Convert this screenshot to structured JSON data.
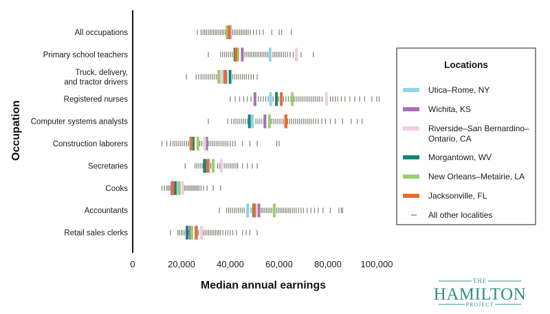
{
  "chart_data": {
    "type": "strip",
    "xlabel": "Median annual earnings",
    "ylabel": "Occupation",
    "xlim": [
      0,
      100000
    ],
    "xticks": [
      0,
      20000,
      40000,
      60000,
      80000,
      100000
    ],
    "xtick_labels": [
      "0",
      "20,000",
      "40,000",
      "60,000",
      "80,000",
      "100,000"
    ],
    "categories": [
      "All occupations",
      "Primary school teachers",
      "Truck, delivery,\nand tractor drivers",
      "Registered nurses",
      "Computer systems analysts",
      "Construction laborers",
      "Secretaries",
      "Cooks",
      "Accountants",
      "Retail sales clerks"
    ],
    "legend_title": "Locations",
    "legend_position": "right",
    "series": [
      {
        "name": "Utica–Rome, NY",
        "color": "#8fd3ec",
        "values": [
          39200,
          56300,
          36700,
          56500,
          49000,
          23700,
          31200,
          18100,
          47100,
          25800
        ]
      },
      {
        "name": "Wichita, KS",
        "color": "#a870b4",
        "values": [
          39900,
          44900,
          38200,
          50100,
          54200,
          30300,
          29900,
          16100,
          51700,
          23600
        ]
      },
      {
        "name": "Riverside–San Bernardino–\nOntario, CA",
        "color": "#f1cde2",
        "values": [
          39600,
          67100,
          36300,
          79400,
          62400,
          29500,
          36300,
          20500,
          50700,
          28200
        ]
      },
      {
        "name": "Morgantown, WV",
        "color": "#10877a",
        "values": [
          38800,
          41900,
          39900,
          58900,
          47800,
          24800,
          29400,
          17400,
          49600,
          22300
        ]
      },
      {
        "name": "New Orleans–Metairie, LA",
        "color": "#9ccf6b",
        "values": [
          38700,
          43100,
          35300,
          65400,
          56000,
          26700,
          33000,
          19100,
          58000,
          24200
        ]
      },
      {
        "name": "Jacksonville, FL",
        "color": "#ec6b2a",
        "values": [
          39500,
          42300,
          37800,
          60900,
          62800,
          24100,
          30800,
          16500,
          49900,
          26100
        ]
      }
    ],
    "others_label": "All other localities",
    "others_color": "#878b7e",
    "other_localities": {
      "All occupations": {
        "min": 26500,
        "max": 65000,
        "samples": [
          26500,
          28000,
          28800,
          29500,
          30200,
          31000,
          31700,
          32400,
          33100,
          33800,
          34500,
          35200,
          35900,
          36600,
          37300,
          38000,
          41000,
          41700,
          42400,
          43100,
          43800,
          44500,
          45200,
          45900,
          46600,
          47300,
          48200,
          49500,
          50700,
          52000,
          53500,
          57000,
          60000,
          61000,
          65000
        ]
      },
      "Primary school teachers": {
        "min": 31000,
        "max": 74000,
        "samples": [
          31000,
          36000,
          36800,
          37600,
          38400,
          39200,
          40000,
          40800,
          41600,
          46000,
          46700,
          47400,
          48100,
          48800,
          49500,
          50200,
          50900,
          51600,
          52300,
          53000,
          53700,
          54400,
          55100,
          55800,
          57500,
          58200,
          58900,
          59600,
          60300,
          61000,
          61800,
          62600,
          63500,
          64500,
          65800,
          69000,
          74000
        ]
      },
      "Truck, delivery,\nand tractor drivers": {
        "min": 22000,
        "max": 51000,
        "samples": [
          22000,
          26000,
          27000,
          28000,
          28800,
          29600,
          30400,
          31200,
          32000,
          32800,
          33600,
          34400,
          41000,
          41800,
          42600,
          43400,
          44200,
          45000,
          45800,
          46600,
          47500,
          48500,
          49500,
          51000
        ]
      },
      "Registered nurses": {
        "min": 40000,
        "max": 101000,
        "samples": [
          40000,
          42000,
          43800,
          45500,
          47000,
          48500,
          51500,
          52500,
          53500,
          54500,
          55500,
          57500,
          59800,
          61800,
          62800,
          63800,
          64800,
          66200,
          67000,
          67800,
          68600,
          69400,
          70200,
          71000,
          71800,
          72600,
          73400,
          74200,
          75000,
          75800,
          76600,
          77600,
          81000,
          82000,
          83000,
          84000,
          85500,
          87000,
          89000,
          91000,
          93000,
          95000,
          98000,
          100000,
          101000
        ]
      },
      "Computer systems analysts": {
        "min": 31000,
        "max": 94000,
        "samples": [
          31000,
          39000,
          40500,
          41500,
          42300,
          43100,
          43900,
          44700,
          45500,
          46300,
          47100,
          48000,
          50500,
          51300,
          52100,
          52900,
          53700,
          54500,
          56800,
          57600,
          58400,
          59200,
          60000,
          60800,
          61600,
          63500,
          64300,
          65100,
          65900,
          66700,
          67500,
          68300,
          69100,
          69900,
          70700,
          71500,
          72300,
          73100,
          74000,
          75000,
          76000,
          77500,
          79000,
          81000,
          83000,
          86000,
          89500,
          92000,
          94000
        ]
      },
      "Construction laborers": {
        "min": 12000,
        "max": 60000,
        "samples": [
          12000,
          14000,
          15500,
          16500,
          17300,
          18100,
          18900,
          19700,
          20500,
          21300,
          22100,
          22900,
          23500,
          27500,
          28300,
          29100,
          31000,
          31800,
          32600,
          33400,
          34200,
          35000,
          35800,
          36600,
          37400,
          38200,
          39000,
          40000,
          41000,
          42000,
          45000,
          48000,
          51000,
          59000,
          60000
        ]
      },
      "Secretaries": {
        "min": 21500,
        "max": 51000,
        "samples": [
          21500,
          25500,
          26300,
          27100,
          27900,
          28700,
          32000,
          34800,
          35600,
          37500,
          38300,
          39100,
          39900,
          40700,
          41500,
          42300,
          43000,
          45000,
          47000,
          49000,
          51000
        ]
      },
      "Cooks": {
        "min": 12000,
        "max": 36000,
        "samples": [
          12000,
          13000,
          14000,
          14600,
          15200,
          15700,
          16700,
          17700,
          18700,
          21200,
          21800,
          22400,
          23000,
          23600,
          24200,
          24800,
          25400,
          26000,
          26600,
          27200,
          28000,
          29000,
          30500,
          33000,
          36000
        ]
      },
      "Accountants": {
        "min": 35500,
        "max": 86000,
        "samples": [
          35500,
          38500,
          39300,
          40100,
          40900,
          41700,
          42500,
          43300,
          44100,
          44900,
          45700,
          48500,
          49200,
          52700,
          53400,
          54100,
          54800,
          55500,
          56200,
          56900,
          57600,
          59000,
          59700,
          60400,
          61100,
          61800,
          62500,
          63200,
          63900,
          64600,
          65400,
          66200,
          67000,
          68000,
          69000,
          70000,
          71500,
          73000,
          74500,
          76000,
          78000,
          81000,
          84500,
          85500,
          86000
        ]
      },
      "Retail sales clerks": {
        "min": 15500,
        "max": 51000,
        "samples": [
          15500,
          18500,
          19200,
          19900,
          20600,
          21300,
          23000,
          27000,
          29000,
          29700,
          30400,
          31100,
          31800,
          32500,
          33200,
          33900,
          34600,
          35300,
          36000,
          37000,
          38000,
          39000,
          40000,
          41000,
          42500,
          45000,
          46500,
          48000,
          51000
        ]
      }
    }
  },
  "logo": {
    "top": "THE",
    "main": "HAMILTON",
    "bottom": "PROJECT"
  }
}
